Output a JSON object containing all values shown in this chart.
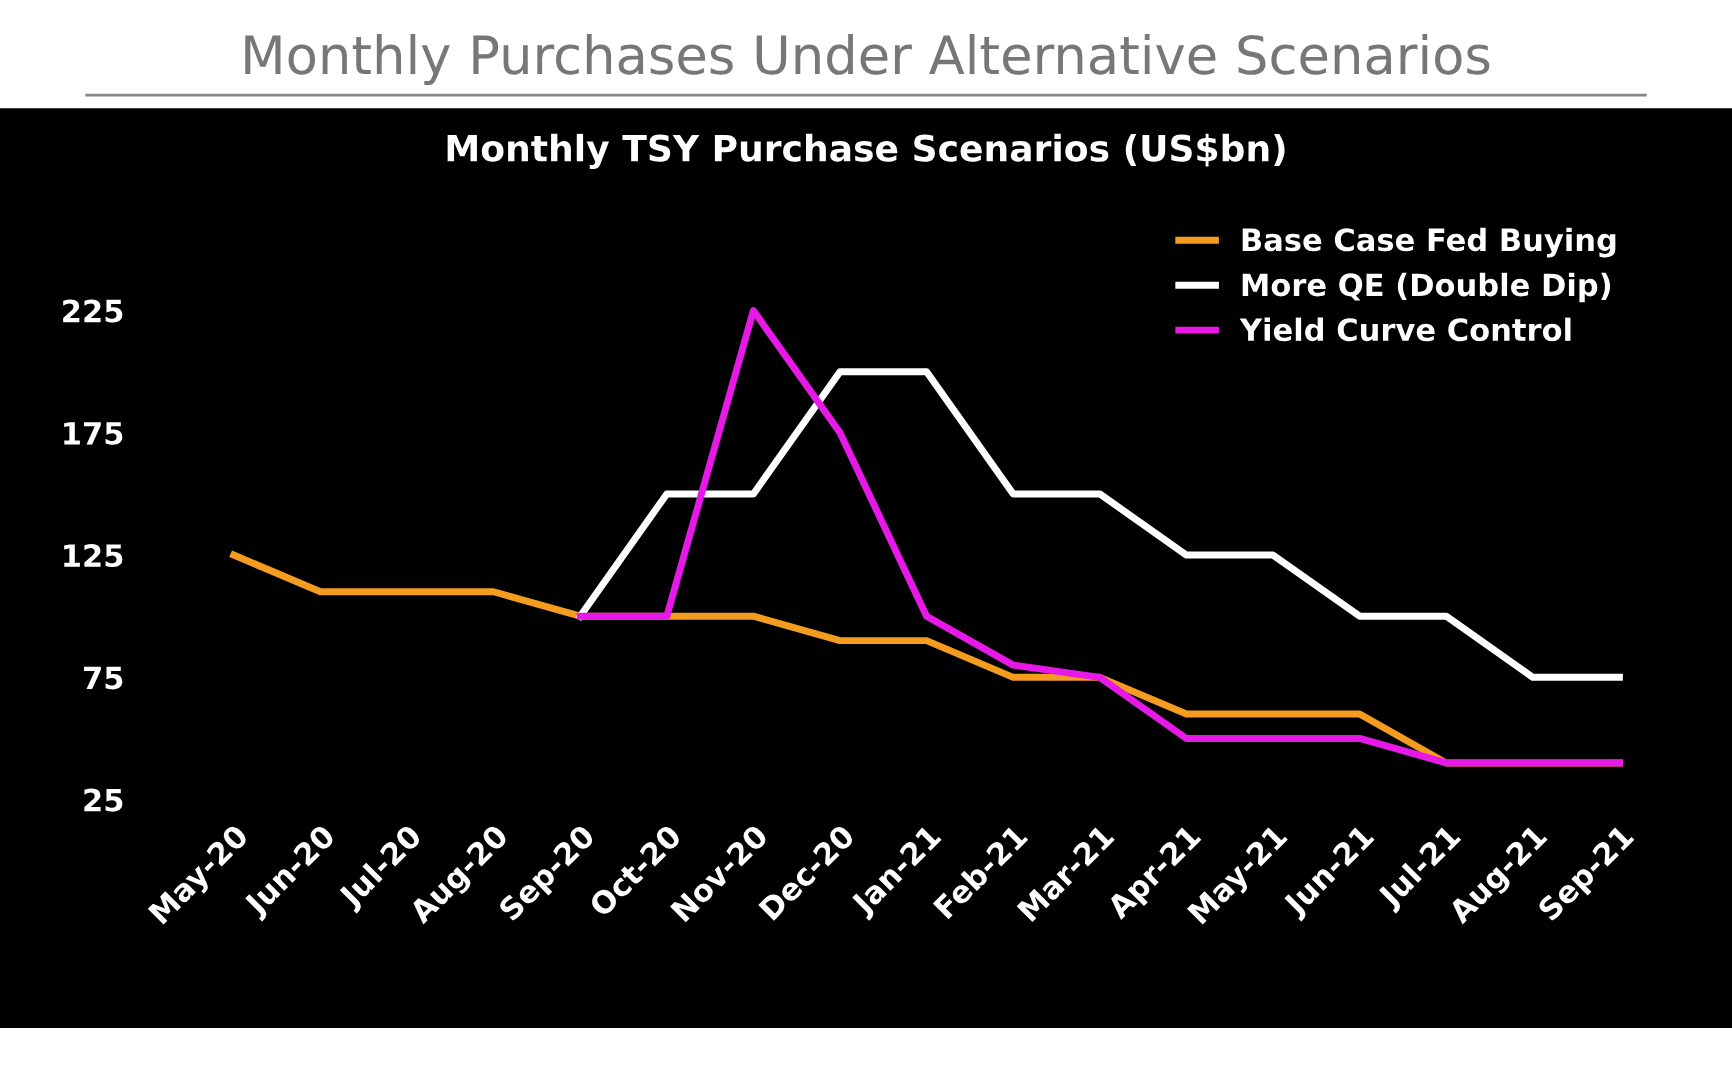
{
  "chart_data": {
    "type": "line",
    "title": "Monthly Purchases Under Alternative Scenarios",
    "subtitle": "Monthly TSY Purchase Scenarios (US$bn)",
    "categories": [
      "May-20",
      "Jun-20",
      "Jul-20",
      "Aug-20",
      "Sep-20",
      "Oct-20",
      "Nov-20",
      "Dec-20",
      "Jan-21",
      "Feb-21",
      "Mar-21",
      "Apr-21",
      "May-21",
      "Jun-21",
      "Jul-21",
      "Aug-21",
      "Sep-21"
    ],
    "series": [
      {
        "name": "Base Case Fed Buying",
        "color": "#f39c1f",
        "values": [
          125,
          110,
          110,
          110,
          100,
          100,
          100,
          90,
          90,
          75,
          75,
          60,
          60,
          60,
          40,
          40,
          40
        ]
      },
      {
        "name": "More QE (Double Dip)",
        "color": "#ffffff",
        "values": [
          null,
          null,
          null,
          null,
          100,
          150,
          150,
          200,
          200,
          150,
          150,
          125,
          125,
          100,
          100,
          75,
          75
        ]
      },
      {
        "name": "Yield Curve Control",
        "color": "#e619e6",
        "values": [
          null,
          null,
          null,
          null,
          100,
          100,
          225,
          175,
          100,
          80,
          75,
          50,
          50,
          50,
          40,
          40,
          40
        ]
      }
    ],
    "ylim": [
      25,
      225
    ],
    "yticks": [
      25,
      75,
      125,
      175,
      225
    ],
    "grid": false,
    "legend": "top right",
    "marker": "none",
    "line_style": "solid"
  }
}
